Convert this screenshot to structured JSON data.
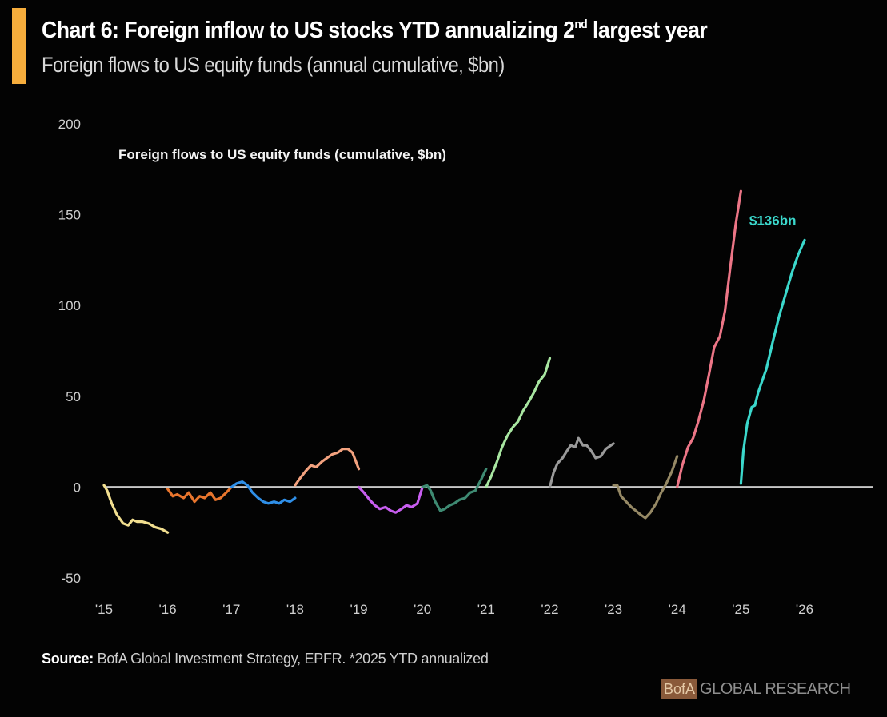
{
  "header": {
    "title_main": "Chart 6: Foreign inflow to US stocks YTD annualizing 2",
    "title_sup": "nd",
    "title_tail": " largest year",
    "subtitle": "Foreign flows to US equity funds (annual cumulative, $bn)"
  },
  "footer": {
    "source_label": "Source:",
    "source_text": " BofA Global Investment Strategy, EPFR. *2025 YTD annualized",
    "brand_box": "BofA",
    "brand_text": "GLOBAL RESEARCH"
  },
  "colors": {
    "accent": "#f6ad3c",
    "background": "#030303",
    "zero_line": "#c8c8c8"
  },
  "chart_data": {
    "type": "line",
    "title": "Chart 6: Foreign inflow to US stocks YTD annualizing 2nd largest year",
    "subtitle": "Foreign flows to US equity funds (annual cumulative, $bn)",
    "inner_title": "Foreign flows to US equity funds (cumulative, $bn)",
    "xlabel": "",
    "ylabel": "",
    "xlim": [
      2015,
      2026
    ],
    "ylim": [
      -50,
      200
    ],
    "y_ticks": [
      200,
      150,
      100,
      50,
      0,
      -50
    ],
    "x_ticks": [
      2015,
      2016,
      2017,
      2018,
      2019,
      2020,
      2021,
      2022,
      2023,
      2024,
      2025,
      2026
    ],
    "x_tick_labels": [
      "'15",
      "'16",
      "'17",
      "'18",
      "'19",
      "'20",
      "'21",
      "'22",
      "'23",
      "'24",
      "'25",
      "'26"
    ],
    "grid": false,
    "legend": "none",
    "zero_line": true,
    "annotations": [
      {
        "text": "$136bn",
        "x": 2025.5,
        "y": 147,
        "series": "2025"
      }
    ],
    "series": [
      {
        "name": "2015",
        "color": "#f1de8f",
        "x": [
          2015.0,
          2015.05,
          2015.12,
          2015.2,
          2015.3,
          2015.38,
          2015.45,
          2015.52,
          2015.6,
          2015.7,
          2015.8,
          2015.9,
          2016.0
        ],
        "y": [
          1,
          -2,
          -9,
          -15,
          -20,
          -21,
          -18,
          -19,
          -19,
          -20,
          -22,
          -23,
          -25
        ]
      },
      {
        "name": "2016",
        "color": "#e8752d",
        "x": [
          2016.0,
          2016.08,
          2016.15,
          2016.25,
          2016.33,
          2016.42,
          2016.5,
          2016.58,
          2016.67,
          2016.75,
          2016.83,
          2016.92,
          2017.0
        ],
        "y": [
          -1,
          -5,
          -4,
          -6,
          -3,
          -8,
          -5,
          -6,
          -3,
          -7,
          -6,
          -3,
          0
        ]
      },
      {
        "name": "2017",
        "color": "#2f8fe8",
        "x": [
          2017.0,
          2017.08,
          2017.17,
          2017.25,
          2017.33,
          2017.42,
          2017.5,
          2017.58,
          2017.67,
          2017.75,
          2017.83,
          2017.92,
          2018.0
        ],
        "y": [
          0,
          2,
          3,
          1,
          -3,
          -6,
          -8,
          -9,
          -8,
          -9,
          -7,
          -8,
          -6
        ]
      },
      {
        "name": "2018",
        "color": "#f3a27f",
        "x": [
          2018.0,
          2018.08,
          2018.17,
          2018.25,
          2018.33,
          2018.42,
          2018.5,
          2018.58,
          2018.67,
          2018.75,
          2018.83,
          2018.9,
          2019.0
        ],
        "y": [
          1,
          5,
          9,
          12,
          11,
          14,
          16,
          18,
          19,
          21,
          21,
          19,
          10
        ]
      },
      {
        "name": "2019",
        "color": "#c85ef0",
        "x": [
          2019.0,
          2019.08,
          2019.17,
          2019.25,
          2019.33,
          2019.42,
          2019.5,
          2019.58,
          2019.67,
          2019.75,
          2019.83,
          2019.92,
          2020.0
        ],
        "y": [
          0,
          -3,
          -7,
          -10,
          -12,
          -11,
          -13,
          -14,
          -12,
          -10,
          -11,
          -9,
          0
        ]
      },
      {
        "name": "2020",
        "color": "#3e8a72",
        "x": [
          2020.0,
          2020.07,
          2020.13,
          2020.2,
          2020.28,
          2020.35,
          2020.43,
          2020.5,
          2020.58,
          2020.67,
          2020.75,
          2020.83,
          2020.92,
          2021.0
        ],
        "y": [
          0,
          1,
          -2,
          -8,
          -13,
          -12,
          -10,
          -9,
          -7,
          -6,
          -3,
          -2,
          4,
          10
        ]
      },
      {
        "name": "2021",
        "color": "#a8e6a1",
        "x": [
          2021.0,
          2021.08,
          2021.17,
          2021.25,
          2021.33,
          2021.42,
          2021.5,
          2021.58,
          2021.67,
          2021.75,
          2021.83,
          2021.92,
          2022.0
        ],
        "y": [
          0,
          6,
          14,
          22,
          28,
          33,
          36,
          42,
          47,
          52,
          58,
          62,
          71
        ]
      },
      {
        "name": "2022",
        "color": "#9a9a9a",
        "x": [
          2022.0,
          2022.06,
          2022.12,
          2022.2,
          2022.27,
          2022.33,
          2022.4,
          2022.45,
          2022.52,
          2022.58,
          2022.65,
          2022.72,
          2022.8,
          2022.88,
          2023.0
        ],
        "y": [
          0,
          8,
          13,
          16,
          20,
          23,
          22,
          27,
          23,
          23,
          20,
          16,
          17,
          21,
          24
        ]
      },
      {
        "name": "2023",
        "color": "#968965",
        "x": [
          2023.0,
          2023.06,
          2023.12,
          2023.2,
          2023.28,
          2023.35,
          2023.42,
          2023.5,
          2023.58,
          2023.67,
          2023.75,
          2023.83,
          2023.92,
          2024.0
        ],
        "y": [
          1,
          1,
          -5,
          -8,
          -11,
          -13,
          -15,
          -17,
          -14,
          -9,
          -3,
          2,
          9,
          17
        ]
      },
      {
        "name": "2024",
        "color": "#ec7586",
        "x": [
          2024.0,
          2024.08,
          2024.17,
          2024.25,
          2024.33,
          2024.42,
          2024.5,
          2024.58,
          2024.67,
          2024.75,
          2024.83,
          2024.92,
          2025.0
        ],
        "y": [
          0,
          12,
          22,
          27,
          36,
          48,
          62,
          77,
          83,
          97,
          120,
          145,
          163
        ]
      },
      {
        "name": "2025",
        "color": "#3bd8cc",
        "x": [
          2025.0,
          2025.04,
          2025.1,
          2025.17,
          2025.22,
          2025.27,
          2025.33,
          2025.4,
          2025.5,
          2025.6,
          2025.7,
          2025.8,
          2025.9,
          2026.0
        ],
        "y": [
          2,
          20,
          35,
          44,
          45,
          52,
          58,
          65,
          80,
          94,
          106,
          118,
          128,
          136
        ]
      }
    ]
  }
}
